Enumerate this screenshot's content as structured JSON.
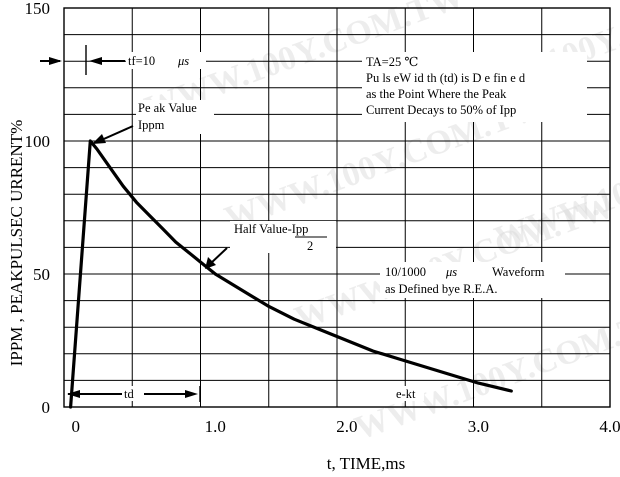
{
  "chart_data": {
    "type": "line",
    "title": "",
    "xlabel": "t, TIME,ms",
    "ylabel": "IPPM , PEAKPULSEC URRENT%",
    "xlim": [
      -0.15,
      4.0
    ],
    "ylim": [
      0,
      150
    ],
    "xticks": [
      0,
      1.0,
      2.0,
      3.0,
      4.0
    ],
    "xtick_labels": [
      "0",
      "1.0",
      "2.0",
      "3.0",
      "4.0"
    ],
    "yticks": [
      0,
      50,
      100,
      150
    ],
    "ytick_labels": [
      "0",
      "50",
      "100",
      "150"
    ],
    "grid": true,
    "series": [
      {
        "x": [
          -0.1,
          0.05,
          0.1,
          0.2,
          0.3,
          0.4,
          0.5,
          0.6,
          0.7,
          0.8,
          0.9,
          1.0,
          1.2,
          1.4,
          1.6,
          1.8,
          2.0,
          2.2,
          2.4,
          2.6,
          2.8,
          3.0,
          3.25
        ],
        "y": [
          0,
          100,
          97,
          90,
          83,
          77,
          72,
          67,
          62,
          58,
          54,
          50,
          44,
          38,
          33,
          29,
          25,
          21,
          18,
          15,
          12,
          9,
          6
        ]
      }
    ],
    "annotations": {
      "tf": "tf=10",
      "tf_unit": "μs",
      "conditions": [
        "TA=25 ℃",
        "Pu ls eW id th (td) is D e fin e d",
        "as the Point Where the Peak",
        "Current Decays to 50% of Ipp"
      ],
      "peak": [
        "Pe ak Value",
        "Ippm"
      ],
      "half_value": "Half Value-Ipp",
      "half_value_den": "2",
      "waveform_num": "10/1000",
      "waveform_unit": "μs",
      "waveform_tail": "Waveform",
      "defined": "as Defined bye R.E.A.",
      "td": "td",
      "ekt": "e-kt"
    }
  },
  "watermark": "WWW.100Y.COM.TW",
  "colors": {
    "line": "#000000",
    "grid": "#000000",
    "watermark": "#d8d8d8"
  }
}
